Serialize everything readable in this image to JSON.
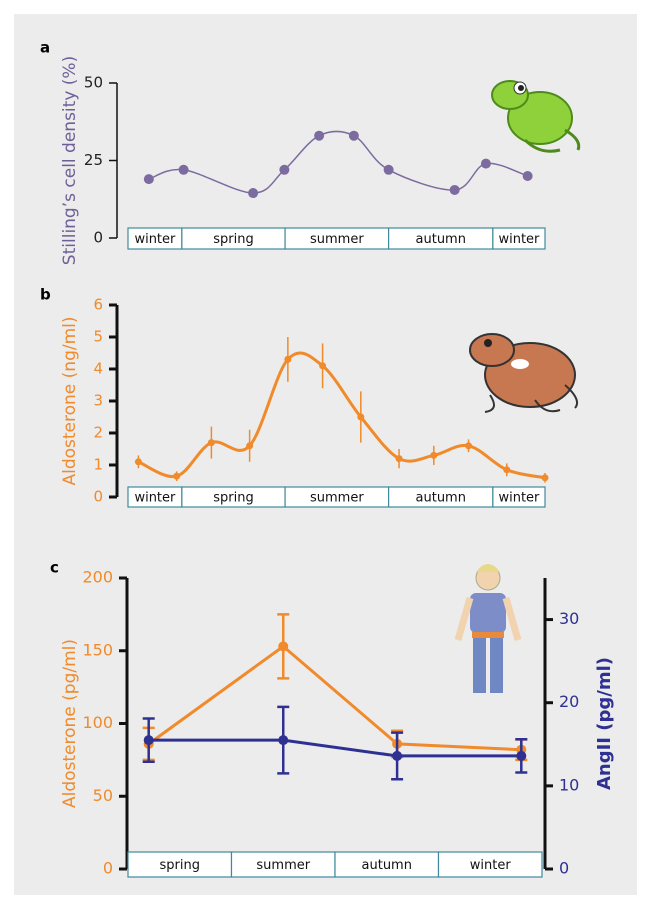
{
  "chart_data": [
    {
      "type": "line",
      "label": "a",
      "y_label": "Stilling’s cell density (%)",
      "y_label_color": "#6f5f96",
      "axis_color": "#222222",
      "xlim": [
        0,
        12
      ],
      "ylim": [
        0,
        50
      ],
      "yticks": [
        0,
        25,
        50
      ],
      "smooth": true,
      "bands": [
        {
          "label": "winter",
          "start": 0,
          "end": 1.55
        },
        {
          "label": "spring",
          "start": 1.55,
          "end": 4.52
        },
        {
          "label": "summer",
          "start": 4.52,
          "end": 7.5
        },
        {
          "label": "autumn",
          "start": 7.5,
          "end": 10.5
        },
        {
          "label": "winter",
          "start": 10.5,
          "end": 12
        }
      ],
      "series": [
        {
          "color": "#7b6b9f",
          "x": [
            0.6,
            1.6,
            3.6,
            4.5,
            5.5,
            6.5,
            7.5,
            9.4,
            10.3,
            11.5
          ],
          "values": [
            19,
            22,
            14.5,
            22,
            33,
            33,
            22,
            15.5,
            24,
            20
          ]
        }
      ]
    },
    {
      "type": "line",
      "label": "b",
      "y_label": "Aldosterone (ng/ml)",
      "y_label_color": "#f08a2a",
      "axis_color": "#f08a2a",
      "xlim": [
        0,
        12
      ],
      "ylim": [
        0,
        6
      ],
      "yticks": [
        0,
        1,
        2,
        3,
        4,
        5,
        6
      ],
      "smooth": true,
      "bands": [
        {
          "label": "winter",
          "start": 0,
          "end": 1.55
        },
        {
          "label": "spring",
          "start": 1.55,
          "end": 4.52
        },
        {
          "label": "summer",
          "start": 4.52,
          "end": 7.5
        },
        {
          "label": "autumn",
          "start": 7.5,
          "end": 10.5
        },
        {
          "label": "winter",
          "start": 10.5,
          "end": 12
        }
      ],
      "series": [
        {
          "color": "#f08a2a",
          "x": [
            0.3,
            1.4,
            2.4,
            3.5,
            4.6,
            5.6,
            6.7,
            7.8,
            8.8,
            9.8,
            10.9,
            12
          ],
          "values": [
            1.1,
            0.65,
            1.7,
            1.6,
            4.3,
            4.1,
            2.5,
            1.2,
            1.3,
            1.6,
            0.85,
            0.6
          ],
          "errors": [
            0.2,
            0.15,
            0.5,
            0.5,
            0.7,
            0.7,
            0.8,
            0.3,
            0.3,
            0.2,
            0.2,
            0.15
          ]
        }
      ]
    },
    {
      "type": "line",
      "label": "c",
      "y_label": "Aldosterone (pg/ml)",
      "y_label_color": "#f08a2a",
      "axis_color": "#f08a2a",
      "y2_label": "AngII (pg/ml)",
      "y2_axis_color": "#2e3192",
      "xlim": [
        0,
        4
      ],
      "ylim": [
        0,
        200
      ],
      "yticks": [
        0,
        50,
        100,
        150,
        200
      ],
      "y2lim": [
        0,
        35
      ],
      "y2ticks": [
        0,
        10,
        20,
        30
      ],
      "smooth": false,
      "bands": [
        {
          "label": "spring",
          "start": 0,
          "end": 1
        },
        {
          "label": "summer",
          "start": 1,
          "end": 2
        },
        {
          "label": "autumn",
          "start": 2,
          "end": 3
        },
        {
          "label": "winter",
          "start": 3,
          "end": 4
        }
      ],
      "series": [
        {
          "color": "#f08a2a",
          "x": [
            0.2,
            1.5,
            2.6,
            3.8
          ],
          "values": [
            86,
            153,
            86,
            82
          ],
          "errors": [
            11,
            22,
            9,
            7
          ]
        },
        {
          "color": "#2e3192",
          "axis": "y2",
          "x": [
            0.2,
            1.5,
            2.6,
            3.8
          ],
          "values": [
            15.5,
            15.5,
            13.6,
            13.6
          ],
          "errors": [
            2.6,
            4,
            2.8,
            2
          ]
        }
      ]
    }
  ]
}
